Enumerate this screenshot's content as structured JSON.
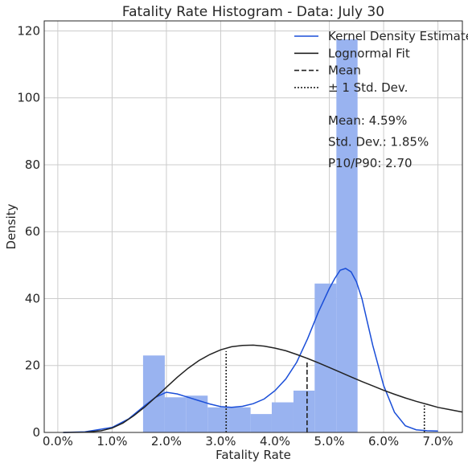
{
  "chart_data": {
    "type": "bar",
    "title": "Fatality Rate Histogram - Data: July 30",
    "xlabel": "Fatality Rate",
    "ylabel": "Density",
    "xlim": [
      -0.0025,
      0.0745
    ],
    "ylim": [
      0,
      123
    ],
    "x_ticks": [
      0.0,
      0.01,
      0.02,
      0.03,
      0.04,
      0.05,
      0.06,
      0.07
    ],
    "x_tick_labels": [
      "0.0%",
      "1.0%",
      "2.0%",
      "3.0%",
      "4.0%",
      "5.0%",
      "6.0%",
      "7.0%"
    ],
    "y_ticks": [
      0,
      20,
      40,
      60,
      80,
      100,
      120
    ],
    "y_tick_labels": [
      "0",
      "20",
      "40",
      "60",
      "80",
      "100",
      "120"
    ],
    "grid": true,
    "legend_position": "top-right",
    "histogram": {
      "color": "#99b3f0",
      "bins": [
        {
          "x0": 0.0157,
          "x1": 0.0197,
          "value": 23
        },
        {
          "x0": 0.0197,
          "x1": 0.0236,
          "value": 10.5
        },
        {
          "x0": 0.0236,
          "x1": 0.0276,
          "value": 11
        },
        {
          "x0": 0.0276,
          "x1": 0.0315,
          "value": 7.5
        },
        {
          "x0": 0.0315,
          "x1": 0.0355,
          "value": 7.5
        },
        {
          "x0": 0.0355,
          "x1": 0.0394,
          "value": 5.5
        },
        {
          "x0": 0.0394,
          "x1": 0.0434,
          "value": 9
        },
        {
          "x0": 0.0434,
          "x1": 0.0473,
          "value": 12.5
        },
        {
          "x0": 0.0473,
          "x1": 0.0513,
          "value": 44.5
        },
        {
          "x0": 0.0513,
          "x1": 0.0552,
          "value": 117.5
        }
      ]
    },
    "series": [
      {
        "name": "Kernel Density Estimate",
        "color": "#1a4ed8",
        "style": "solid",
        "x": [
          0.001,
          0.005,
          0.01,
          0.013,
          0.016,
          0.018,
          0.02,
          0.022,
          0.024,
          0.026,
          0.028,
          0.03,
          0.032,
          0.034,
          0.036,
          0.038,
          0.04,
          0.042,
          0.044,
          0.046,
          0.048,
          0.05,
          0.051,
          0.052,
          0.053,
          0.054,
          0.055,
          0.056,
          0.057,
          0.058,
          0.06,
          0.062,
          0.064,
          0.066,
          0.068,
          0.07
        ],
        "y": [
          0,
          0.2,
          1.5,
          4,
          8,
          10.5,
          12,
          11.5,
          10.5,
          9.5,
          8.5,
          7.7,
          7.5,
          7.8,
          8.6,
          10,
          12.5,
          16,
          21,
          28,
          36,
          43,
          46,
          48.5,
          49,
          48,
          45,
          40,
          33,
          26,
          14,
          6,
          2,
          0.8,
          0.5,
          0.4
        ]
      },
      {
        "name": "Lognormal Fit",
        "color": "#222222",
        "style": "solid",
        "x": [
          0.001,
          0.005,
          0.008,
          0.01,
          0.012,
          0.014,
          0.016,
          0.018,
          0.02,
          0.022,
          0.024,
          0.026,
          0.028,
          0.03,
          0.032,
          0.034,
          0.036,
          0.038,
          0.04,
          0.042,
          0.044,
          0.046,
          0.048,
          0.05,
          0.052,
          0.054,
          0.056,
          0.058,
          0.06,
          0.062,
          0.064,
          0.066,
          0.068,
          0.07,
          0.0745
        ],
        "y": [
          0,
          0.05,
          0.5,
          1.3,
          2.8,
          5,
          7.6,
          10.5,
          13.5,
          16.5,
          19.2,
          21.5,
          23.3,
          24.7,
          25.6,
          26,
          26.1,
          25.8,
          25.2,
          24.4,
          23.3,
          22.1,
          20.8,
          19.4,
          18,
          16.6,
          15.2,
          13.9,
          12.6,
          11.4,
          10.3,
          9.3,
          8.4,
          7.5,
          6.1
        ]
      }
    ],
    "vlines": [
      {
        "name": "Mean",
        "style": "dashed",
        "x": 0.0459,
        "y_top": 21.3
      },
      {
        "name": "± 1 Std. Dev.",
        "style": "dotted",
        "x": 0.031,
        "y_top": 24.3
      },
      {
        "name": "± 1 Std. Dev.",
        "style": "dotted",
        "x": 0.0675,
        "y_top": 8.1
      }
    ],
    "legend": [
      {
        "label": "Kernel Density Estimate",
        "color": "#1a4ed8",
        "style": "solid"
      },
      {
        "label": "Lognormal Fit",
        "color": "#222222",
        "style": "solid"
      },
      {
        "label": "Mean",
        "color": "#222222",
        "style": "dashed"
      },
      {
        "label": "± 1 Std. Dev.",
        "color": "#222222",
        "style": "dotted"
      }
    ],
    "stats": [
      "Mean: 4.59%",
      "Std. Dev.: 1.85%",
      "P10/P90: 2.70"
    ]
  }
}
